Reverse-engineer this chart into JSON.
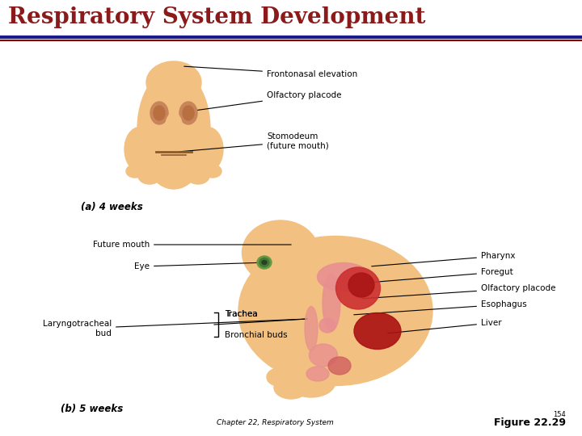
{
  "title": "Respiratory System Development",
  "title_color": "#8B1A1A",
  "title_fontsize": 20,
  "bg_color": "#FFFFFF",
  "footer_left": "Chapter 22, Respiratory System",
  "footer_right_line1": "154",
  "footer_right_line2": "Figure 22.29",
  "label_a": "(a) 4 weeks",
  "label_b": "(b) 5 weeks",
  "skin_color": "#F2C080",
  "skin_dark": "#D4956A",
  "skin_shadow": "#C8845A",
  "red_color": "#CC2222",
  "pink_color": "#E89090",
  "pink_dark": "#D06060",
  "green_outer": "#669966",
  "green_inner": "#336633",
  "liver_color": "#AA1111"
}
